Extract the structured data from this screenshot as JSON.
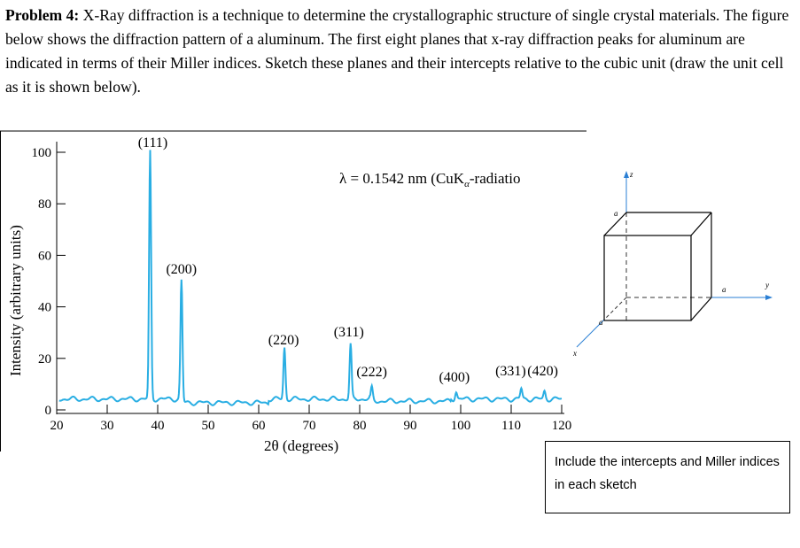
{
  "problem": {
    "label": "Problem 4:",
    "text": " X-Ray diffraction is a technique to determine the crystallographic structure of single crystal materials. The figure below shows the diffraction pattern of a aluminum. The first eight planes that x-ray diffraction peaks for aluminum are indicated in terms of their Miller indices. Sketch these planes and their intercepts relative to the cubic unit (draw the unit cell as it is shown below)."
  },
  "chart_data": {
    "type": "line",
    "xlabel": "2θ (degrees)",
    "ylabel": "Intensity (arbitrary units)",
    "xlim": [
      20,
      120
    ],
    "ylim": [
      0,
      100
    ],
    "x_ticks": [
      "20",
      "30",
      "40",
      "50",
      "60",
      "70",
      "80",
      "90",
      "100",
      "110",
      "120"
    ],
    "y_ticks": [
      "0",
      "20",
      "40",
      "60",
      "80",
      "100"
    ],
    "annotation": "λ = 0.1542 nm (CuK",
    "annotation_sub": "α",
    "annotation_tail": "-radiatio",
    "line_color": "#29aee3",
    "peaks": [
      {
        "label": "(111)",
        "x": 38.5,
        "y": 100
      },
      {
        "label": "(200)",
        "x": 44.7,
        "y": 50
      },
      {
        "label": "(220)",
        "x": 65.1,
        "y": 24
      },
      {
        "label": "(311)",
        "x": 78.2,
        "y": 25
      },
      {
        "label": "(222)",
        "x": 82.4,
        "y": 9
      },
      {
        "label": "(400)",
        "x": 99.1,
        "y": 7
      },
      {
        "label": "(331)",
        "x": 112.0,
        "y": 8
      },
      {
        "label": "(420)",
        "x": 116.6,
        "y": 7
      }
    ]
  },
  "unit_cell": {
    "z_label": "z",
    "y_label": "y",
    "x_label": "x",
    "edge_label_top": "a",
    "edge_label_right": "a",
    "edge_label_left": "a"
  },
  "note": {
    "text": "Include the intercepts and Miller indices in each sketch"
  }
}
